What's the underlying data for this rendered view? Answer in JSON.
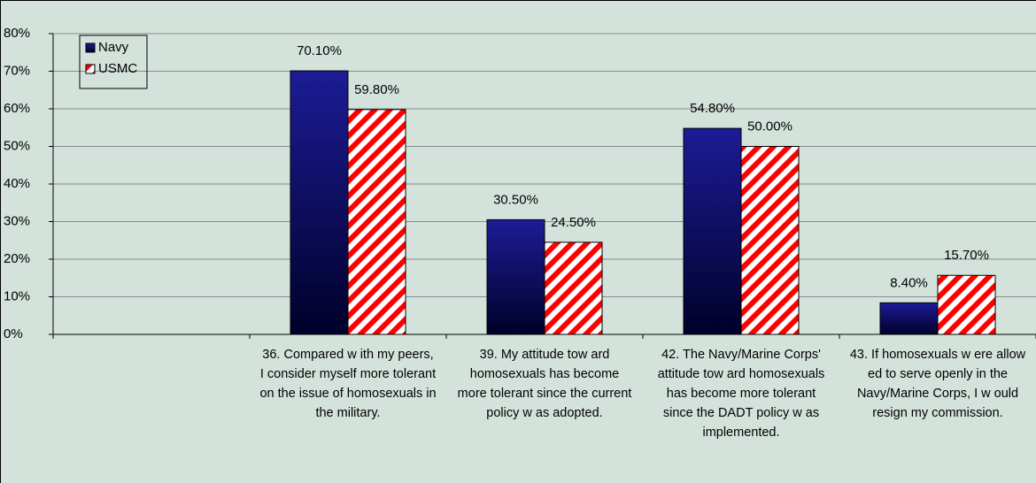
{
  "chart_data": {
    "type": "bar",
    "categories": [
      null,
      "36. Compared w ith my peers, I consider myself more tolerant on the issue of homosexuals in the military.",
      "39. My attitude tow ard homosexuals has become more tolerant since the current policy w as adopted.",
      "42. The Navy/Marine Corps' attitude tow ard homosexuals has become more tolerant since the DADT policy w as implemented.",
      "43. If homosexuals w ere allow ed to serve openly in the Navy/Marine Corps, I w ould resign my commission."
    ],
    "series": [
      {
        "name": "Navy",
        "color": "#14147a",
        "values": [
          null,
          70.1,
          30.5,
          54.8,
          8.4
        ],
        "value_labels": [
          null,
          "70.10%",
          "30.50%",
          "54.80%",
          "8.40%"
        ]
      },
      {
        "name": "USMC",
        "color": "#ff0000",
        "values": [
          null,
          59.8,
          24.5,
          50.0,
          15.7
        ],
        "value_labels": [
          null,
          "59.80%",
          "24.50%",
          "50.00%",
          "15.70%"
        ]
      }
    ],
    "ylim": [
      0,
      80
    ],
    "yticks": [
      {
        "value": 0,
        "label": "0%"
      },
      {
        "value": 10,
        "label": "10%"
      },
      {
        "value": 20,
        "label": "20%"
      },
      {
        "value": 30,
        "label": "30%"
      },
      {
        "value": 40,
        "label": "40%"
      },
      {
        "value": 50,
        "label": "50%"
      },
      {
        "value": 60,
        "label": "60%"
      },
      {
        "value": 70,
        "label": "70%"
      },
      {
        "value": 80,
        "label": "80%"
      }
    ],
    "grid": true,
    "legend": "upper left"
  }
}
